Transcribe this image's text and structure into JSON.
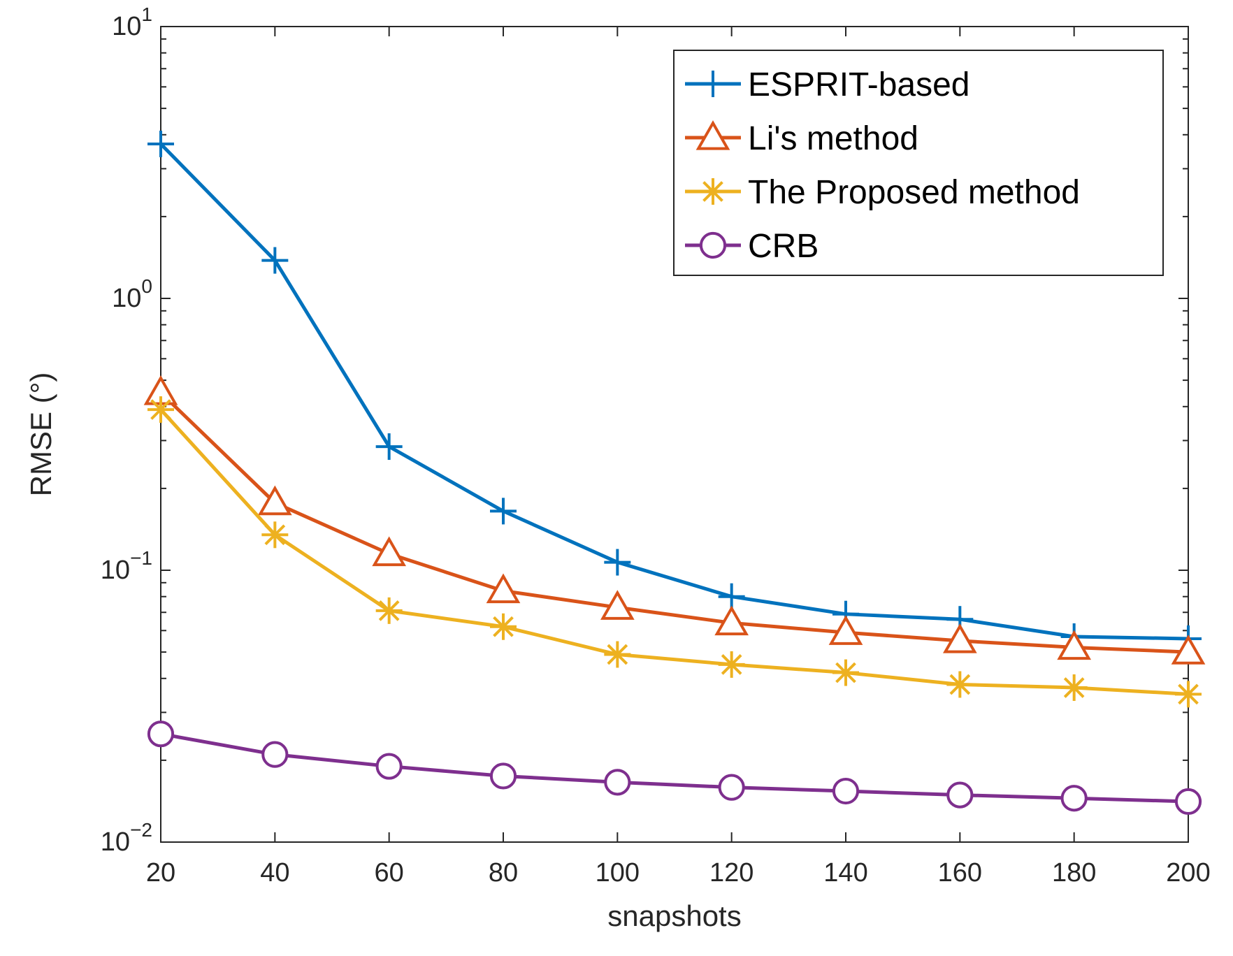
{
  "chart_data": {
    "type": "line",
    "xlabel": "snapshots",
    "ylabel": "RMSE (°)",
    "y_scale": "log",
    "xlim": [
      20,
      200
    ],
    "ylim": [
      0.01,
      10
    ],
    "x_ticks": [
      "20",
      "40",
      "60",
      "80",
      "100",
      "120",
      "140",
      "160",
      "180",
      "200"
    ],
    "y_ticks": [
      {
        "base": "10",
        "exp": "−2",
        "value": 0.01
      },
      {
        "base": "10",
        "exp": "−1",
        "value": 0.1
      },
      {
        "base": "10",
        "exp": "0",
        "value": 1
      },
      {
        "base": "10",
        "exp": "1",
        "value": 10
      }
    ],
    "grid": false,
    "legend_position": "top-right",
    "x": [
      20,
      40,
      60,
      80,
      100,
      120,
      140,
      160,
      180,
      200
    ],
    "series": [
      {
        "name": "ESPRIT-based",
        "color": "#0072BD",
        "marker": "plus",
        "values": [
          3.7,
          1.38,
          0.285,
          0.165,
          0.107,
          0.08,
          0.069,
          0.066,
          0.057,
          0.056
        ]
      },
      {
        "name": "Li's method",
        "color": "#D95319",
        "marker": "triangle",
        "values": [
          0.45,
          0.177,
          0.115,
          0.084,
          0.073,
          0.064,
          0.059,
          0.055,
          0.052,
          0.05
        ]
      },
      {
        "name": "The Proposed method",
        "color": "#EDB120",
        "marker": "asterisk",
        "values": [
          0.39,
          0.135,
          0.071,
          0.062,
          0.049,
          0.045,
          0.042,
          0.038,
          0.037,
          0.035
        ]
      },
      {
        "name": "CRB",
        "color": "#7E2F8E",
        "marker": "circle",
        "values": [
          0.025,
          0.021,
          0.019,
          0.0175,
          0.0166,
          0.0159,
          0.0154,
          0.0149,
          0.0145,
          0.0141
        ]
      }
    ]
  }
}
